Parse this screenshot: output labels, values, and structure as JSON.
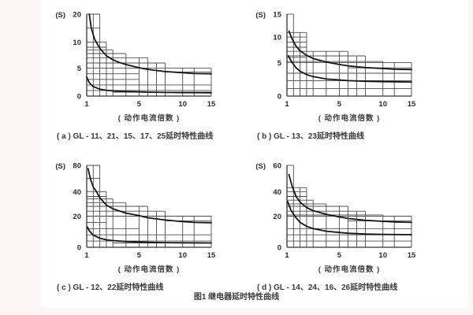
{
  "figure_caption": "图1  继电器延时特性曲线",
  "colors": {
    "page_background": "#fdf6f6",
    "panel_background": "#ffffff",
    "grid_line": "#4d4d4d",
    "axis_line": "#333333",
    "curve": "#151515",
    "text": "#2e2e2e"
  },
  "chart_data": [
    {
      "type": "line",
      "caption": "( a ) GL - 11、21、15、17、25延时特性曲线",
      "xlabel": "( 动作电流倍数 )",
      "y_unit": "(S)",
      "x_range": [
        1,
        15
      ],
      "x_ticks": [
        {
          "v": 1,
          "f": 0,
          "label": "1"
        },
        {
          "v": 5,
          "f": 0.42,
          "label": "5"
        },
        {
          "v": 10,
          "f": 0.77,
          "label": "10"
        },
        {
          "v": 15,
          "f": 1,
          "label": "15"
        }
      ],
      "y_ticks": [
        {
          "v": 0,
          "f": 0,
          "label": "0"
        },
        {
          "v": 5,
          "f": 0.34,
          "label": "5"
        },
        {
          "v": 10,
          "f": 0.66,
          "label": "10"
        },
        {
          "v": 20,
          "f": 1,
          "label": "20"
        }
      ],
      "grid_x": [
        1,
        1.5,
        2,
        2.5,
        3,
        4,
        5,
        6,
        7,
        8,
        10,
        12,
        15
      ],
      "steps": [
        [
          1,
          2,
          20
        ],
        [
          2,
          2.5,
          10
        ],
        [
          2.5,
          3,
          8.5
        ],
        [
          3,
          4,
          7.8
        ],
        [
          4,
          6,
          7
        ],
        [
          6,
          8,
          6
        ],
        [
          8,
          15,
          5
        ]
      ],
      "hlines": [
        [
          15,
          1,
          2
        ],
        [
          10,
          1,
          2
        ],
        [
          9,
          1,
          2.5
        ],
        [
          8.5,
          1,
          2.5
        ],
        [
          7.8,
          1,
          3
        ],
        [
          7,
          1,
          4
        ],
        [
          6,
          1,
          6
        ],
        [
          5,
          1,
          8
        ],
        [
          4.3,
          8,
          15
        ],
        [
          4,
          1,
          5
        ],
        [
          3,
          1,
          5
        ],
        [
          2,
          1,
          15
        ],
        [
          1,
          1,
          15
        ],
        [
          0.7,
          3,
          15
        ]
      ],
      "series": [
        {
          "name": "upper-limit-curve",
          "points": [
            [
              1.2,
              20
            ],
            [
              1.35,
              15
            ],
            [
              1.6,
              11
            ],
            [
              2,
              8.8
            ],
            [
              2.5,
              7.4
            ],
            [
              3,
              6.6
            ],
            [
              3.5,
              6.1
            ],
            [
              4,
              5.7
            ],
            [
              5,
              5.1
            ],
            [
              6,
              4.8
            ],
            [
              7,
              4.6
            ],
            [
              8,
              4.4
            ],
            [
              10,
              4.2
            ],
            [
              12,
              4.05
            ],
            [
              15,
              4.0
            ]
          ]
        },
        {
          "name": "lower-limit-curve",
          "points": [
            [
              1,
              3.4
            ],
            [
              1.2,
              2.4
            ],
            [
              1.5,
              1.7
            ],
            [
              2,
              1.25
            ],
            [
              2.5,
              1.05
            ],
            [
              3,
              0.95
            ],
            [
              4,
              0.82
            ],
            [
              5,
              0.75
            ],
            [
              6,
              0.7
            ],
            [
              8,
              0.65
            ],
            [
              10,
              0.62
            ],
            [
              15,
              0.6
            ]
          ]
        }
      ]
    },
    {
      "type": "line",
      "caption": "( b ) GL - 13、23延时特性曲线",
      "xlabel": "( 动作电流倍数 )",
      "y_unit": "(S)",
      "x_range": [
        1,
        15
      ],
      "x_ticks": [
        {
          "v": 1,
          "f": 0,
          "label": "1"
        },
        {
          "v": 5,
          "f": 0.42,
          "label": "5"
        },
        {
          "v": 10,
          "f": 0.77,
          "label": "10"
        },
        {
          "v": 15,
          "f": 1,
          "label": "15"
        }
      ],
      "y_ticks": [
        {
          "v": 0,
          "f": 0,
          "label": "0"
        },
        {
          "v": 5,
          "f": 0.41,
          "label": "5"
        },
        {
          "v": 10,
          "f": 0.72,
          "label": "10"
        },
        {
          "v": 15,
          "f": 1,
          "label": "15"
        }
      ],
      "grid_x": [
        1,
        1.5,
        2,
        2.5,
        3,
        4,
        5,
        6,
        7,
        8,
        10,
        12,
        15
      ],
      "steps": [
        [
          1,
          1.5,
          15
        ],
        [
          1.5,
          2.5,
          11
        ],
        [
          2.5,
          6,
          7.2
        ],
        [
          6,
          8,
          6.3
        ],
        [
          8,
          10,
          5.2
        ],
        [
          10,
          15,
          5
        ]
      ],
      "hlines": [
        [
          11,
          1,
          1.5
        ],
        [
          10,
          1,
          2.5
        ],
        [
          9,
          1,
          2.5
        ],
        [
          8,
          1,
          2.5
        ],
        [
          7.2,
          1,
          2.5
        ],
        [
          6.3,
          1,
          6
        ],
        [
          6,
          1,
          2.5
        ],
        [
          5.2,
          1,
          8
        ],
        [
          5,
          1,
          10
        ],
        [
          4.2,
          6,
          15
        ],
        [
          3.4,
          1,
          15
        ],
        [
          2.3,
          1,
          15
        ],
        [
          1.1,
          1,
          15
        ]
      ],
      "series": [
        {
          "name": "upper-limit-curve",
          "points": [
            [
              1.15,
              11.3
            ],
            [
              1.4,
              9.6
            ],
            [
              1.7,
              8.2
            ],
            [
              2,
              7.3
            ],
            [
              2.5,
              6.4
            ],
            [
              3,
              5.8
            ],
            [
              4,
              5.1
            ],
            [
              5,
              4.7
            ],
            [
              6,
              4.5
            ],
            [
              8,
              4.25
            ],
            [
              10,
              4.1
            ],
            [
              12,
              4.0
            ],
            [
              15,
              3.95
            ]
          ]
        },
        {
          "name": "lower-limit-curve",
          "points": [
            [
              1.1,
              6.3
            ],
            [
              1.4,
              5.0
            ],
            [
              1.7,
              4.2
            ],
            [
              2,
              3.7
            ],
            [
              2.5,
              3.2
            ],
            [
              3,
              2.9
            ],
            [
              4,
              2.55
            ],
            [
              5,
              2.4
            ],
            [
              6,
              2.3
            ],
            [
              8,
              2.2
            ],
            [
              10,
              2.15
            ],
            [
              15,
              2.1
            ]
          ]
        }
      ]
    },
    {
      "type": "line",
      "caption": "( c ) GL - 12、22延时特性曲线",
      "xlabel": "( 动作电流倍数 )",
      "y_unit": "(S)",
      "x_range": [
        1,
        15
      ],
      "x_ticks": [
        {
          "v": 1,
          "f": 0,
          "label": "1"
        },
        {
          "v": 5,
          "f": 0.42,
          "label": "5"
        },
        {
          "v": 10,
          "f": 0.77,
          "label": "10"
        },
        {
          "v": 15,
          "f": 1,
          "label": "15"
        }
      ],
      "y_ticks": [
        {
          "v": 0,
          "f": 0,
          "label": "0"
        },
        {
          "v": 20,
          "f": 0.38,
          "label": "20"
        },
        {
          "v": 40,
          "f": 0.68,
          "label": "40"
        },
        {
          "v": 80,
          "f": 1,
          "label": "80"
        }
      ],
      "grid_x": [
        1,
        1.5,
        2,
        2.5,
        3,
        4,
        5,
        6,
        7,
        8,
        10,
        12,
        15
      ],
      "steps": [
        [
          1,
          2,
          80
        ],
        [
          2,
          2.5,
          40
        ],
        [
          2.5,
          3,
          34
        ],
        [
          3,
          4,
          31
        ],
        [
          4,
          6,
          28
        ],
        [
          6,
          8,
          24
        ],
        [
          8,
          15,
          20
        ]
      ],
      "hlines": [
        [
          60,
          1,
          2
        ],
        [
          40,
          1,
          2
        ],
        [
          36,
          1,
          2.5
        ],
        [
          34,
          1,
          2.5
        ],
        [
          31,
          1,
          3
        ],
        [
          28,
          1,
          4
        ],
        [
          24,
          1,
          6
        ],
        [
          20,
          1,
          8
        ],
        [
          17,
          8,
          15
        ],
        [
          16,
          1,
          2.5
        ],
        [
          12,
          1,
          5
        ],
        [
          8,
          1,
          15
        ],
        [
          4,
          1,
          15
        ],
        [
          2.8,
          3,
          15
        ]
      ],
      "series": [
        {
          "name": "upper-limit-curve",
          "points": [
            [
              1.1,
              75
            ],
            [
              1.3,
              58
            ],
            [
              1.5,
              47
            ],
            [
              1.75,
              40
            ],
            [
              2,
              35
            ],
            [
              2.5,
              29
            ],
            [
              3,
              26
            ],
            [
              4,
              22.5
            ],
            [
              5,
              20.5
            ],
            [
              6,
              19
            ],
            [
              8,
              17.5
            ],
            [
              10,
              16.5
            ],
            [
              12,
              16
            ],
            [
              15,
              15.8
            ]
          ]
        },
        {
          "name": "lower-limit-curve",
          "points": [
            [
              1.05,
              13
            ],
            [
              1.2,
              10.5
            ],
            [
              1.5,
              7.8
            ],
            [
              2,
              5.8
            ],
            [
              2.5,
              4.8
            ],
            [
              3,
              4.3
            ],
            [
              4,
              3.7
            ],
            [
              5,
              3.4
            ],
            [
              6,
              3.2
            ],
            [
              8,
              3.0
            ],
            [
              10,
              2.9
            ],
            [
              15,
              2.8
            ]
          ]
        }
      ]
    },
    {
      "type": "line",
      "caption": "( d ) GL - 14、24、16、26延时特性曲线",
      "xlabel": "( 动作电流倍数 )",
      "y_unit": "(S)",
      "x_range": [
        1,
        15
      ],
      "x_ticks": [
        {
          "v": 1,
          "f": 0,
          "label": "1"
        },
        {
          "v": 5,
          "f": 0.42,
          "label": "5"
        },
        {
          "v": 10,
          "f": 0.77,
          "label": "10"
        },
        {
          "v": 15,
          "f": 1,
          "label": "15"
        }
      ],
      "y_ticks": [
        {
          "v": 0,
          "f": 0,
          "label": "0"
        },
        {
          "v": 20,
          "f": 0.38,
          "label": "20"
        },
        {
          "v": 40,
          "f": 0.68,
          "label": "40"
        },
        {
          "v": 60,
          "f": 1,
          "label": "60"
        }
      ],
      "grid_x": [
        1,
        1.5,
        2,
        2.5,
        3,
        4,
        5,
        6,
        7,
        8,
        10,
        12,
        15
      ],
      "steps": [
        [
          1,
          1.5,
          60
        ],
        [
          1.5,
          2.5,
          43
        ],
        [
          2.5,
          3,
          33
        ],
        [
          3,
          4,
          30
        ],
        [
          4,
          6,
          28
        ],
        [
          6,
          8,
          24
        ],
        [
          8,
          10,
          21
        ],
        [
          10,
          15,
          20
        ]
      ],
      "hlines": [
        [
          43,
          1,
          1.5
        ],
        [
          40,
          1,
          2.5
        ],
        [
          36,
          1,
          2.5
        ],
        [
          33,
          1,
          2.5
        ],
        [
          30,
          1,
          3
        ],
        [
          28,
          1,
          4
        ],
        [
          24,
          1,
          6
        ],
        [
          21,
          1,
          8
        ],
        [
          20,
          1,
          10
        ],
        [
          17,
          6,
          15
        ],
        [
          12,
          1,
          15
        ],
        [
          8,
          1,
          15
        ],
        [
          4,
          1,
          15
        ]
      ],
      "series": [
        {
          "name": "upper-limit-curve",
          "points": [
            [
              1.15,
              53
            ],
            [
              1.4,
              44
            ],
            [
              1.7,
              36
            ],
            [
              2,
              31.5
            ],
            [
              2.5,
              27
            ],
            [
              3,
              24.5
            ],
            [
              4,
              21.5
            ],
            [
              5,
              19.5
            ],
            [
              6,
              18.5
            ],
            [
              8,
              17.3
            ],
            [
              10,
              16.7
            ],
            [
              12,
              16.3
            ],
            [
              15,
              16
            ]
          ]
        },
        {
          "name": "lower-limit-curve",
          "points": [
            [
              1.05,
              32
            ],
            [
              1.3,
              25
            ],
            [
              1.6,
              20
            ],
            [
              2,
              16
            ],
            [
              2.5,
              13.5
            ],
            [
              3,
              12
            ],
            [
              4,
              10.3
            ],
            [
              5,
              9.5
            ],
            [
              6,
              9
            ],
            [
              8,
              8.5
            ],
            [
              10,
              8.3
            ],
            [
              15,
              8.1
            ]
          ]
        }
      ]
    }
  ]
}
